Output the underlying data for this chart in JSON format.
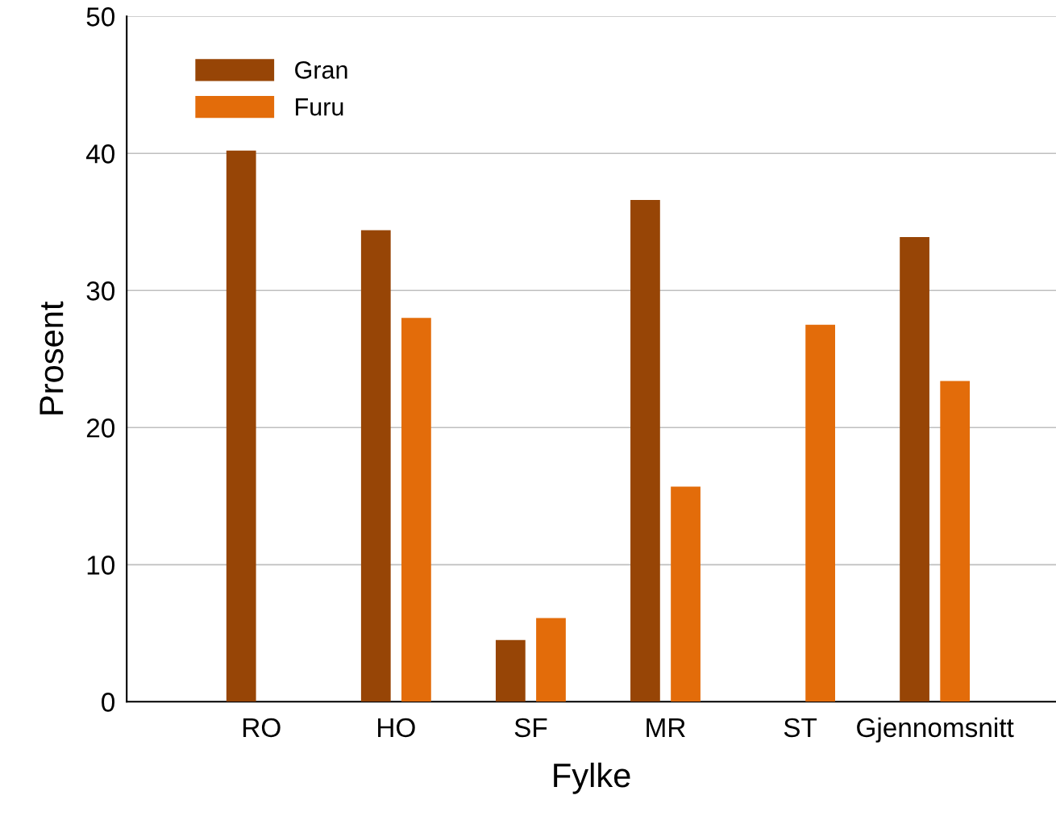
{
  "chart_data": {
    "type": "bar",
    "xlabel": "Fylke",
    "ylabel": "Prosent",
    "categories": [
      "RO",
      "HO",
      "SF",
      "MR",
      "ST",
      "Gjennomsnitt"
    ],
    "series": [
      {
        "name": "Gran",
        "color": "#974506",
        "values": [
          40.2,
          34.4,
          4.5,
          36.6,
          null,
          33.9
        ]
      },
      {
        "name": "Furu",
        "color": "#e36c0a",
        "values": [
          null,
          28.0,
          6.1,
          15.7,
          27.5,
          23.4
        ]
      }
    ],
    "ylim": [
      0,
      50
    ],
    "yticks": [
      0,
      10,
      20,
      30,
      40,
      50
    ],
    "grid": "y",
    "legend": "top left"
  }
}
